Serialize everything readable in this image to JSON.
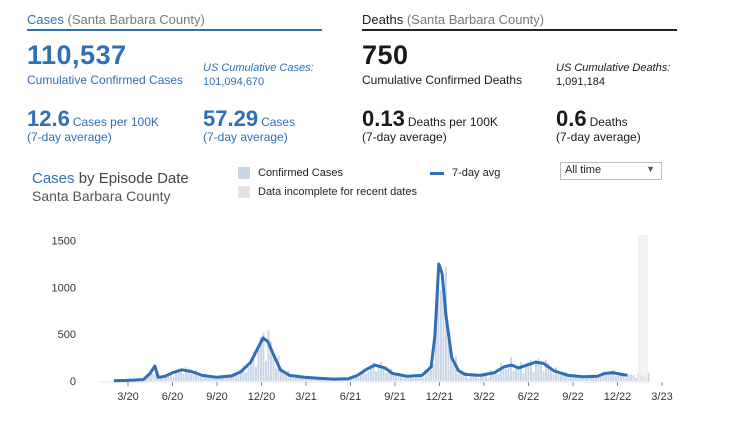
{
  "cases": {
    "title": "Cases",
    "county": "(Santa Barbara County)",
    "total": "110,537",
    "total_label": "Cumulative Confirmed Cases",
    "us_label": "US Cumulative Cases:",
    "us_value": "101,094,670",
    "per100k": "12.6",
    "per100k_unit": "Cases per 100K",
    "per100k_sub": "(7-day average)",
    "avg": "57.29",
    "avg_unit": "Cases",
    "avg_sub": "(7-day average)",
    "accent": "#2f6fb6"
  },
  "deaths": {
    "title": "Deaths",
    "county": "(Santa Barbara County)",
    "total": "750",
    "total_label": "Cumulative Confirmed Deaths",
    "us_label": "US Cumulative Deaths:",
    "us_value": "1,091,184",
    "per100k": "0.13",
    "per100k_unit": "Deaths per 100K",
    "per100k_sub": "(7-day average)",
    "avg": "0.6",
    "avg_unit": "Deaths",
    "avg_sub": "(7-day average)"
  },
  "chart_header": {
    "title_accent": "Cases",
    "title_rest": "by Episode Date",
    "subtitle": "Santa Barbara County",
    "legend_confirmed": "Confirmed Cases",
    "legend_incomplete": "Data incomplete for recent dates",
    "legend_avg": "7-day avg",
    "range_select": "All time"
  },
  "chart_data": {
    "type": "bar",
    "x_labels": [
      "3/20",
      "6/20",
      "9/20",
      "12/20",
      "3/21",
      "6/21",
      "9/21",
      "12/21",
      "3/22",
      "6/22",
      "9/22",
      "12/22",
      "3/23"
    ],
    "y_ticks": [
      0,
      500,
      1000,
      1500
    ],
    "ylim": [
      0,
      1600
    ],
    "series": [
      {
        "name": "7-day avg",
        "x": [
          "2020-03-01",
          "2020-04-01",
          "2020-05-01",
          "2020-05-15",
          "2020-05-25",
          "2020-06-01",
          "2020-06-15",
          "2020-07-01",
          "2020-07-20",
          "2020-08-10",
          "2020-09-01",
          "2020-10-01",
          "2020-11-01",
          "2020-11-20",
          "2020-12-10",
          "2020-12-25",
          "2021-01-05",
          "2021-01-15",
          "2021-01-25",
          "2021-02-10",
          "2021-03-01",
          "2021-04-01",
          "2021-05-01",
          "2021-06-01",
          "2021-07-01",
          "2021-07-20",
          "2021-08-10",
          "2021-08-25",
          "2021-09-15",
          "2021-10-01",
          "2021-11-01",
          "2021-12-01",
          "2021-12-20",
          "2021-12-28",
          "2022-01-05",
          "2022-01-12",
          "2022-01-20",
          "2022-02-01",
          "2022-02-15",
          "2022-03-01",
          "2022-04-01",
          "2022-05-01",
          "2022-05-20",
          "2022-06-05",
          "2022-06-20",
          "2022-07-10",
          "2022-07-25",
          "2022-08-10",
          "2022-09-01",
          "2022-10-01",
          "2022-11-01",
          "2022-12-01",
          "2022-12-15",
          "2023-01-01",
          "2023-01-20",
          "2023-02-01"
        ],
        "values": [
          3,
          8,
          15,
          80,
          160,
          40,
          50,
          90,
          120,
          100,
          60,
          40,
          55,
          100,
          200,
          350,
          460,
          420,
          300,
          120,
          60,
          40,
          30,
          20,
          25,
          60,
          130,
          170,
          140,
          80,
          50,
          60,
          150,
          480,
          1250,
          1150,
          700,
          250,
          110,
          70,
          60,
          90,
          150,
          170,
          140,
          175,
          200,
          190,
          110,
          60,
          45,
          50,
          80,
          90,
          70,
          60
        ]
      }
    ]
  }
}
